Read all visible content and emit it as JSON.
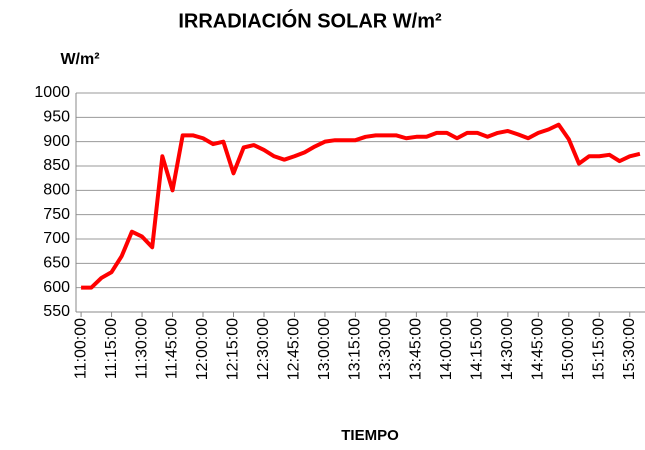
{
  "chart_data": {
    "type": "line",
    "title": "IRRADIACIÓN SOLAR W/m²",
    "y_label": "W/m²",
    "x_label": "TIEMPO",
    "categories": [
      "11:00:00",
      null,
      null,
      "11:15:00",
      null,
      null,
      "11:30:00",
      null,
      null,
      "11:45:00",
      null,
      null,
      "12:00:00",
      null,
      null,
      "12:15:00",
      null,
      null,
      "12:30:00",
      null,
      null,
      "12:45:00",
      null,
      null,
      "13:00:00",
      null,
      null,
      "13:15:00",
      null,
      null,
      "13:30:00",
      null,
      null,
      "13:45:00",
      null,
      null,
      "14:00:00",
      null,
      null,
      "14:15:00",
      null,
      null,
      "14:30:00",
      null,
      null,
      "14:45:00",
      null,
      null,
      "15:00:00",
      null,
      null,
      "15:15:00",
      null,
      null,
      "15:30:00",
      null
    ],
    "series": [
      {
        "color": "#ff0000",
        "values": [
          600,
          600,
          620,
          632,
          665,
          715,
          705,
          683,
          870,
          800,
          913,
          913,
          907,
          895,
          900,
          835,
          888,
          893,
          883,
          870,
          863,
          870,
          878,
          890,
          900,
          903,
          903,
          903,
          910,
          913,
          913,
          913,
          907,
          910,
          910,
          918,
          918,
          907,
          918,
          918,
          910,
          918,
          922,
          915,
          907,
          918,
          925,
          935,
          905,
          855,
          870,
          870,
          873,
          860,
          870,
          875
        ]
      }
    ],
    "ylim": [
      550,
      1000
    ],
    "yticks": [
      550,
      600,
      650,
      700,
      750,
      800,
      850,
      900,
      950,
      1000
    ],
    "grid": true
  }
}
